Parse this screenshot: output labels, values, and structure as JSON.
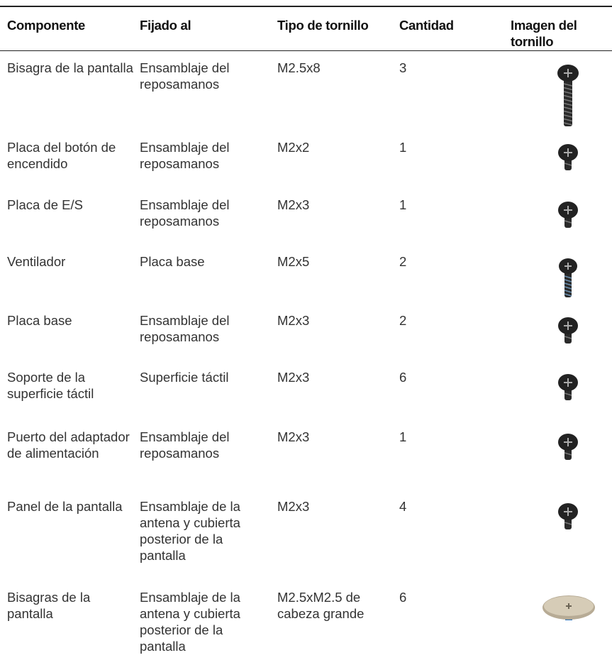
{
  "table": {
    "header": [
      "Componente",
      "Fijado al",
      "Tipo de tornillo",
      "Cantidad",
      "Imagen del tornillo"
    ],
    "rows": [
      [
        "Bisagra de la pantalla",
        "Ensamblaje del reposamanos",
        "M2.5x8",
        "3"
      ],
      [
        "Placa del botón de encendido",
        "Ensamblaje del reposamanos",
        "M2x2",
        "1"
      ],
      [
        "Placa de E/S",
        "Ensamblaje del reposamanos",
        "M2x3",
        "1"
      ],
      [
        "Ventilador",
        "Placa base",
        "M2x5",
        "2"
      ],
      [
        "Placa base",
        "Ensamblaje del reposamanos",
        "M2x3",
        "2"
      ],
      [
        "Soporte de la superficie táctil",
        "Superficie táctil",
        "M2x3",
        "6"
      ],
      [
        "Puerto del adaptador de alimentación",
        "Ensamblaje del reposamanos",
        "M2x3",
        "1"
      ],
      [
        "Panel de la pantalla",
        "Ensamblaje de la antena y cubierta posterior de la pantalla",
        "M2x3",
        "4"
      ],
      [
        "Bisagras de la pantalla",
        "Ensamblaje de la antena y cubierta posterior de la pantalla",
        "M2.5xM2.5 de cabeza grande",
        "6"
      ]
    ]
  }
}
